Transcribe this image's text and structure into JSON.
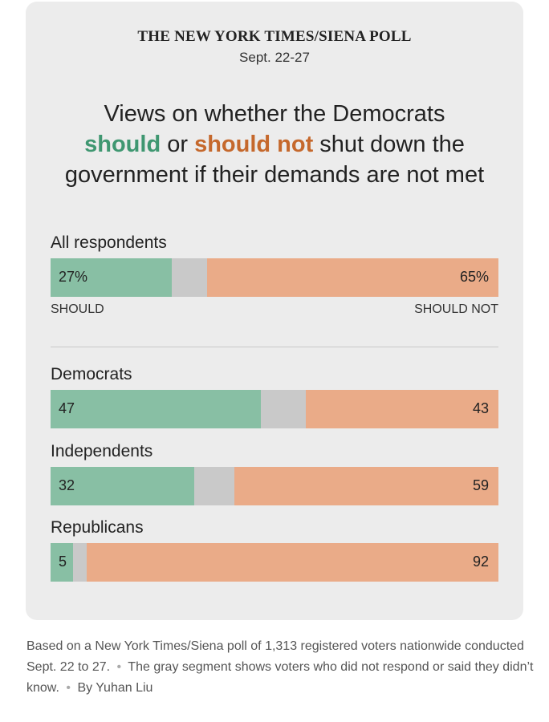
{
  "header": {
    "poll_name": "THE NEW YORK TIMES/SIENA POLL",
    "dates": "Sept. 22-27"
  },
  "title": {
    "line1": "Views on whether the Democrats",
    "should": "should",
    "or": " or ",
    "should_not": "should not",
    "rest": " shut down the",
    "line3": "government if their demands are not met"
  },
  "axis": {
    "left": "SHOULD",
    "right": "SHOULD NOT"
  },
  "colors": {
    "should": "#88bfa4",
    "unsure": "#c9c9c9",
    "should_not": "#eaab88"
  },
  "chart_data": {
    "type": "bar",
    "orientation": "horizontal-stacked",
    "title": "Views on whether the Democrats should or should not shut down the government if their demands are not met",
    "categories": [
      "All respondents",
      "Democrats",
      "Independents",
      "Republicans"
    ],
    "series": [
      {
        "name": "should",
        "values": [
          27,
          47,
          32,
          5
        ]
      },
      {
        "name": "should not",
        "values": [
          65,
          43,
          59,
          92
        ]
      }
    ],
    "value_labels": {
      "should": [
        "27%",
        "47",
        "32",
        "5"
      ],
      "should_not": [
        "65%",
        "43",
        "59",
        "92"
      ]
    },
    "xlim": [
      0,
      100
    ],
    "legend": "none"
  },
  "footnote": {
    "part1": "Based on a New York Times/Siena poll of 1,313 registered voters nationwide conducted Sept. 22 to 27.",
    "bullet": "•",
    "part2": "The gray segment shows voters who did not respond or said they didn’t know.",
    "part3": "By Yuhan Liu"
  }
}
